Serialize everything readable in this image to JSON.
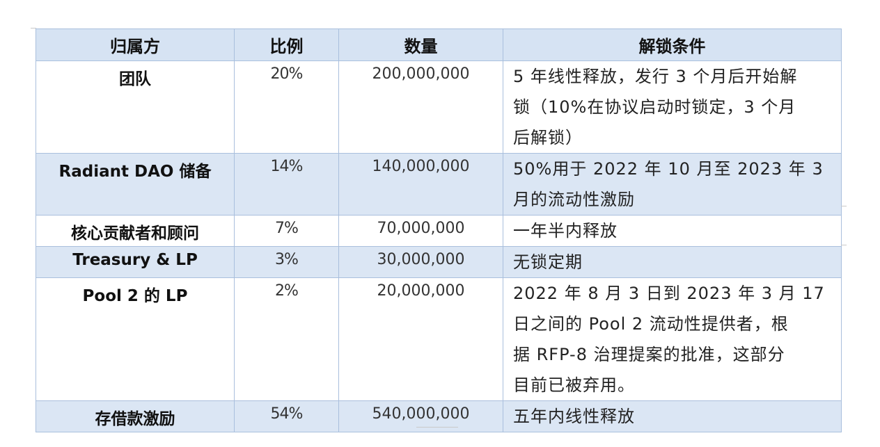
{
  "table": {
    "headers": [
      "归属方",
      "比例",
      "数量",
      "解锁条件"
    ],
    "rows": [
      {
        "owner": "团队",
        "pct": "20%",
        "amount": "200,000,000",
        "cond_lines": [
          "5 年线性释放，发行 3 个月后开始解",
          "锁（10%在协议启动时锁定，3 个月",
          "后解锁）"
        ],
        "shaded": false
      },
      {
        "owner": "Radiant DAO 储备",
        "pct": "14%",
        "amount": "140,000,000",
        "cond_lines": [
          "50%用于 2022 年 10 月至 2023 年 3",
          "月的流动性激励"
        ],
        "shaded": true
      },
      {
        "owner": "核心贡献者和顾问",
        "pct": "7%",
        "amount": "70,000,000",
        "cond_lines": [
          "一年半内释放"
        ],
        "shaded": false
      },
      {
        "owner": "Treasury & LP",
        "pct": "3%",
        "amount": "30,000,000",
        "cond_lines": [
          "无锁定期"
        ],
        "shaded": true
      },
      {
        "owner": "Pool 2 的 LP",
        "pct": "2%",
        "amount": "20,000,000",
        "cond_lines": [
          "2022 年 8 月 3 日到 2023 年 3 月 17",
          "日之间的 Pool 2 流动性提供者，根",
          "据 RFP-8 治理提案的批准，这部分",
          "目前已被弃用。"
        ],
        "shaded": false
      },
      {
        "owner": "存借款激励",
        "pct": "54%",
        "amount": "540,000,000",
        "cond_lines": [
          "五年内线性释放"
        ],
        "shaded": true
      }
    ]
  }
}
